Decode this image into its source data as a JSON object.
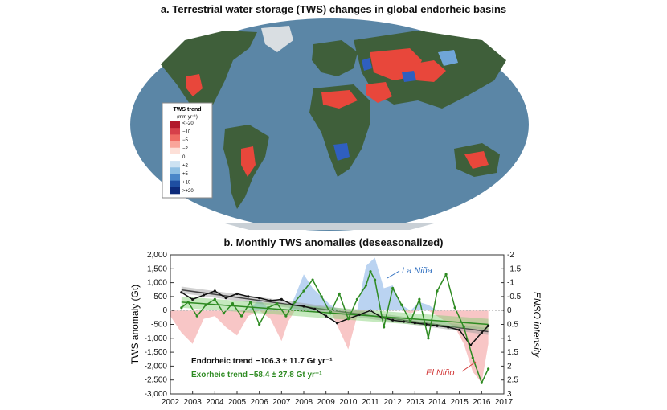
{
  "panel_a": {
    "title": "a. Terrestrial water storage (TWS) changes in global endorheic basins",
    "legend": {
      "title": "TWS trend",
      "unit": "(mm yr⁻¹)",
      "labels": [
        "<−20",
        "−10",
        "−5",
        "−2",
        "0",
        "+2",
        "+5",
        "+10",
        ">+20"
      ],
      "colors": [
        "#b2182b",
        "#d6404a",
        "#ef6b63",
        "#f9a59a",
        "#fde0d8",
        "#ffffff",
        "#cde2f2",
        "#8fbfe3",
        "#4a86c8",
        "#1f4ea1",
        "#0d2a7a"
      ]
    },
    "colors": {
      "ocean": "#5b86a6",
      "land": "#3f5f3a",
      "decline": "#e8473b",
      "gain": "#2f5fc0"
    }
  },
  "panel_b": {
    "title": "b. Monthly TWS anomalies (deseasonalized)",
    "ylabel_left": "TWS anomaly (Gt)",
    "ylabel_right": "ENSO intensity",
    "y_ticks": [
      "2,000",
      "1,500",
      "1,000",
      "500",
      "0",
      "-500",
      "-1,000",
      "-1,500",
      "-2,000",
      "-2,500",
      "-3,000"
    ],
    "y_right_ticks": [
      "-2",
      "-1.5",
      "-1",
      "-0.5",
      "0",
      "0.5",
      "1",
      "1.5",
      "2",
      "2.5",
      "3"
    ],
    "x_ticks": [
      "2002",
      "2003",
      "2004",
      "2005",
      "2006",
      "2007",
      "2008",
      "2009",
      "2010",
      "2011",
      "2012",
      "2013",
      "2014",
      "2015",
      "2016",
      "2017"
    ],
    "la_nina_label": "La Niña",
    "el_nino_label": "El Niño",
    "endorheic_trend": {
      "label": "Endorheic trend",
      "value": "−106.3 ± 11.7 Gt yr⁻¹",
      "color": "#111111"
    },
    "exorheic_trend": {
      "label": "Exorheic trend",
      "value": "−58.4 ± 27.8 Gt yr⁻¹",
      "color": "#2e8b22"
    }
  },
  "chart_data": {
    "type": "line",
    "xlim": [
      2002,
      2017
    ],
    "ylim": [
      -3000,
      2000
    ],
    "ylim_right": [
      -2,
      3
    ],
    "series": [
      {
        "name": "Endorheic",
        "color": "#111111",
        "x": [
          2002.5,
          2003.0,
          2003.5,
          2004.0,
          2004.5,
          2005.0,
          2005.5,
          2006.0,
          2006.5,
          2007.0,
          2007.5,
          2008.0,
          2008.5,
          2009.0,
          2009.5,
          2010.0,
          2010.5,
          2011.0,
          2011.5,
          2012.0,
          2012.5,
          2013.0,
          2013.5,
          2014.0,
          2014.5,
          2015.0,
          2015.5,
          2016.0,
          2016.3
        ],
        "y": [
          650,
          400,
          550,
          700,
          450,
          600,
          500,
          450,
          350,
          400,
          200,
          150,
          50,
          -200,
          -450,
          -300,
          -150,
          0,
          -250,
          -350,
          -400,
          -450,
          -500,
          -550,
          -600,
          -700,
          -1250,
          -800,
          -550
        ]
      },
      {
        "name": "Exorheic",
        "color": "#2e8b22",
        "x": [
          2002.5,
          2002.8,
          2003.2,
          2003.6,
          2004.0,
          2004.4,
          2004.8,
          2005.2,
          2005.6,
          2006.0,
          2006.4,
          2006.8,
          2007.2,
          2007.6,
          2008.0,
          2008.4,
          2008.8,
          2009.2,
          2009.6,
          2010.0,
          2010.4,
          2010.8,
          2011.0,
          2011.2,
          2011.6,
          2012.0,
          2012.4,
          2012.8,
          2013.2,
          2013.6,
          2014.0,
          2014.4,
          2014.8,
          2015.2,
          2015.6,
          2016.0,
          2016.3
        ],
        "y": [
          100,
          300,
          -200,
          200,
          400,
          -100,
          250,
          -200,
          300,
          -500,
          100,
          250,
          -200,
          300,
          700,
          1100,
          500,
          -100,
          600,
          -300,
          400,
          900,
          1400,
          1100,
          -600,
          800,
          200,
          -400,
          400,
          -1000,
          700,
          1300,
          100,
          -600,
          -1700,
          -2600,
          -2100
        ]
      }
    ],
    "trend_lines": [
      {
        "name": "Endorheic trend",
        "x": [
          2002.5,
          2016.3
        ],
        "y": [
          740,
          -760
        ]
      },
      {
        "name": "Exorheic trend",
        "x": [
          2002.5,
          2016.3
        ],
        "y": [
          300,
          -500
        ]
      }
    ],
    "enso": {
      "x": [
        2002.0,
        2002.5,
        2003.0,
        2003.5,
        2004.0,
        2004.5,
        2005.0,
        2005.5,
        2006.0,
        2006.5,
        2007.0,
        2007.3,
        2007.6,
        2008.0,
        2008.4,
        2008.8,
        2009.2,
        2009.6,
        2010.0,
        2010.4,
        2010.8,
        2011.2,
        2011.6,
        2012.0,
        2012.4,
        2012.8,
        2013.2,
        2013.6,
        2014.0,
        2014.4,
        2014.8,
        2015.2,
        2015.6,
        2016.0,
        2016.3
      ],
      "y": [
        0.2,
        0.8,
        1.2,
        0.3,
        0.2,
        0.6,
        0.9,
        0.2,
        -0.4,
        0.3,
        1.1,
        0.4,
        -0.5,
        -1.3,
        -0.8,
        -0.5,
        -0.2,
        0.7,
        1.4,
        0.2,
        -1.6,
        -1.9,
        -0.8,
        -0.9,
        -0.2,
        0.1,
        -0.3,
        -0.2,
        0.2,
        0.4,
        0.6,
        1.2,
        2.2,
        2.6,
        1.2
      ]
    }
  }
}
